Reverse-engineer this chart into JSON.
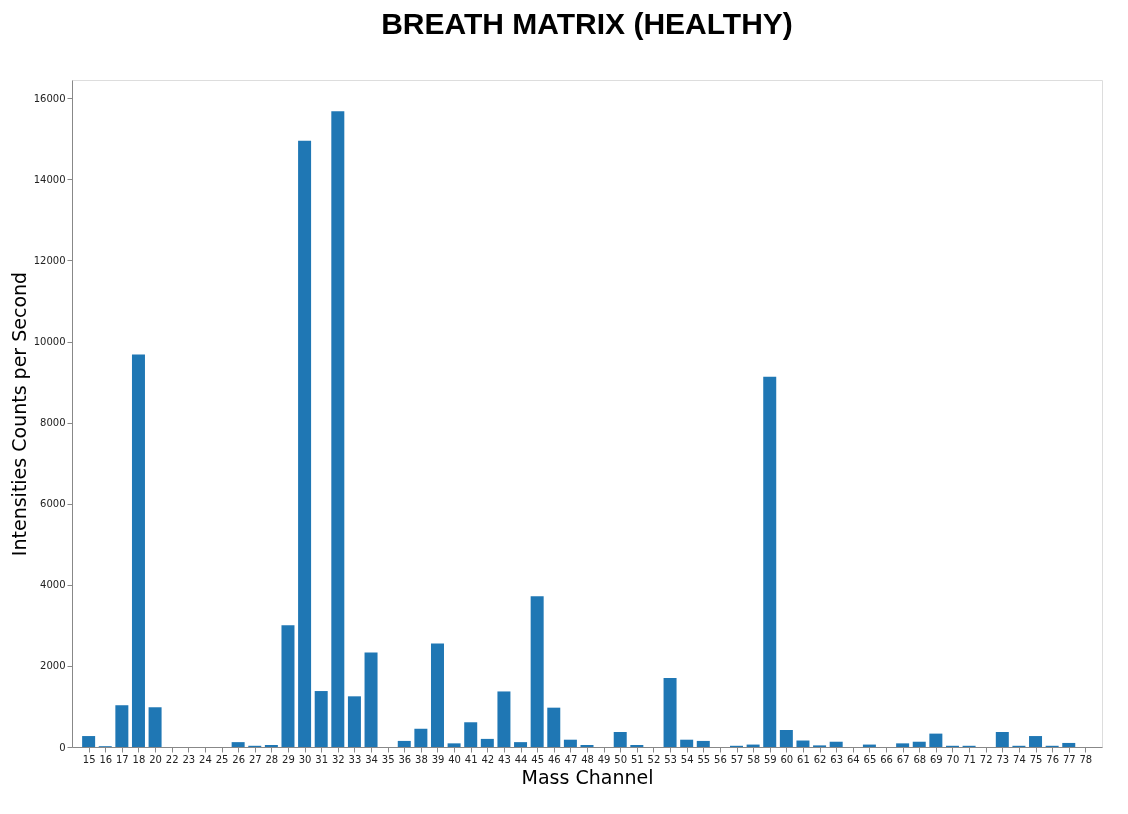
{
  "chart_data": {
    "type": "bar",
    "title": "BREATH MATRIX (HEALTHY)",
    "xlabel": "Mass Channel",
    "ylabel": "Intensities Counts per Second",
    "categories": [
      "15",
      "16",
      "17",
      "18",
      "20",
      "22",
      "23",
      "24",
      "25",
      "26",
      "27",
      "28",
      "29",
      "30",
      "31",
      "32",
      "33",
      "34",
      "35",
      "36",
      "38",
      "39",
      "40",
      "41",
      "42",
      "43",
      "44",
      "45",
      "46",
      "47",
      "48",
      "49",
      "50",
      "51",
      "52",
      "53",
      "54",
      "55",
      "56",
      "57",
      "58",
      "59",
      "60",
      "61",
      "62",
      "63",
      "64",
      "65",
      "66",
      "67",
      "68",
      "69",
      "70",
      "71",
      "72",
      "73",
      "74",
      "75",
      "76",
      "77",
      "78"
    ],
    "values": [
      270,
      20,
      1030,
      9680,
      980,
      0,
      0,
      0,
      0,
      120,
      30,
      50,
      3000,
      14950,
      1380,
      15680,
      1250,
      2330,
      0,
      150,
      450,
      2550,
      90,
      610,
      200,
      1370,
      120,
      3720,
      970,
      180,
      50,
      0,
      370,
      50,
      0,
      1700,
      180,
      150,
      0,
      30,
      60,
      9130,
      420,
      160,
      40,
      130,
      0,
      60,
      0,
      90,
      130,
      330,
      30,
      30,
      0,
      370,
      30,
      270,
      30,
      100,
      0
    ],
    "color": "#1f77b4",
    "ylim": [
      0,
      16450
    ],
    "yticks": [
      0,
      2000,
      4000,
      6000,
      8000,
      10000,
      12000,
      14000,
      16000
    ],
    "grid": false
  }
}
